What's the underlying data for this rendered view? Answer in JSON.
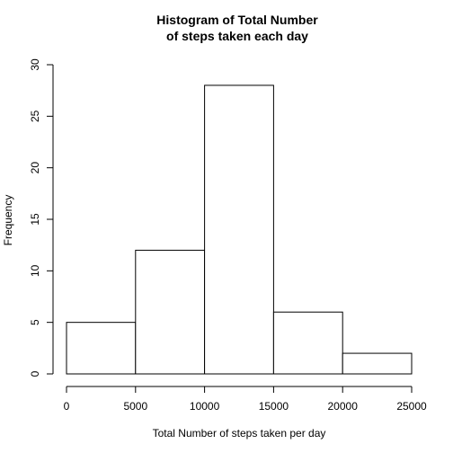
{
  "chart_data": {
    "type": "bar",
    "title_lines": [
      "Histogram of Total Number",
      "of steps taken each day"
    ],
    "xlabel": "Total Number of steps taken per day",
    "ylabel": "Frequency",
    "bins": [
      {
        "from": 0,
        "to": 5000,
        "count": 5
      },
      {
        "from": 5000,
        "to": 10000,
        "count": 12
      },
      {
        "from": 10000,
        "to": 15000,
        "count": 28
      },
      {
        "from": 15000,
        "to": 20000,
        "count": 6
      },
      {
        "from": 20000,
        "to": 25000,
        "count": 2
      }
    ],
    "xlim": [
      0,
      25000
    ],
    "ylim": [
      0,
      30
    ],
    "x_ticks": [
      "0",
      "5000",
      "10000",
      "15000",
      "20000",
      "25000"
    ],
    "y_ticks": [
      "0",
      "5",
      "10",
      "15",
      "20",
      "25",
      "30"
    ],
    "grid": false,
    "colors": {
      "bar_fill": "#ffffff",
      "bar_stroke": "#000000"
    }
  }
}
